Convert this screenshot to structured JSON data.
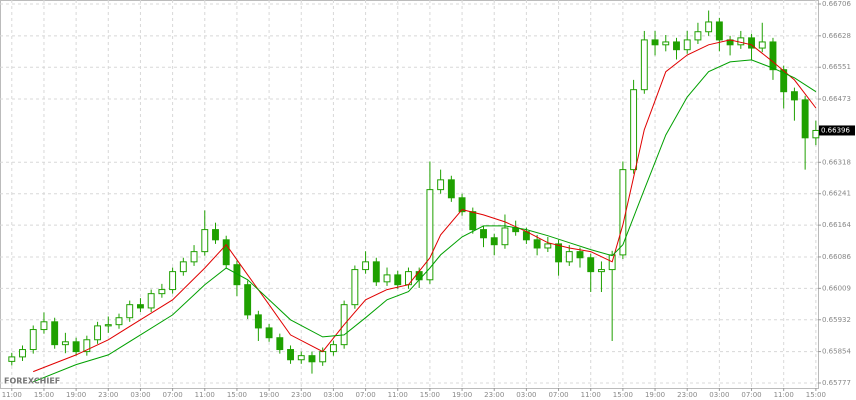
{
  "chart_data": {
    "type": "candlestick",
    "watermark": "FOREXCHIEF",
    "last_price": 0.66396,
    "grid": true,
    "up_color": "#ffffff",
    "down_color": "#1fa000",
    "wick_color": "#1fa000",
    "xlim": [
      -1.1,
      75.2
    ],
    "ylim": [
      0.65777,
      0.66706
    ],
    "yticks": [
      0.66706,
      0.66628,
      0.66551,
      0.66473,
      0.66318,
      0.66241,
      0.66164,
      0.66086,
      0.66009,
      0.65932,
      0.65854,
      0.65777
    ],
    "xticks": [
      {
        "value": 0,
        "label": "11:00"
      },
      {
        "value": 3,
        "label": "15:00"
      },
      {
        "value": 6,
        "label": "19:00"
      },
      {
        "value": 9,
        "label": "23:00"
      },
      {
        "value": 12,
        "label": "03:00"
      },
      {
        "value": 15,
        "label": "07:00"
      },
      {
        "value": 18,
        "label": "11:00"
      },
      {
        "value": 21,
        "label": "15:00"
      },
      {
        "value": 24,
        "label": "19:00"
      },
      {
        "value": 27,
        "label": "23:00"
      },
      {
        "value": 30,
        "label": "03:00"
      },
      {
        "value": 33,
        "label": "07:00"
      },
      {
        "value": 36,
        "label": "11:00"
      },
      {
        "value": 39,
        "label": "15:00"
      },
      {
        "value": 42,
        "label": "19:00"
      },
      {
        "value": 45,
        "label": "23:00"
      },
      {
        "value": 48,
        "label": "03:00"
      },
      {
        "value": 51,
        "label": "07:00"
      },
      {
        "value": 54,
        "label": "11:00"
      },
      {
        "value": 57,
        "label": "15:00"
      },
      {
        "value": 60,
        "label": "19:00"
      },
      {
        "value": 63,
        "label": "23:00"
      },
      {
        "value": 66,
        "label": "03:00"
      },
      {
        "value": 69,
        "label": "07:00"
      },
      {
        "value": 72,
        "label": "11:00"
      },
      {
        "value": 75,
        "label": "15:00"
      }
    ],
    "candles": [
      [
        0.6583,
        0.65851,
        0.6582,
        0.65841
      ],
      [
        0.65841,
        0.65869,
        0.65831,
        0.65859
      ],
      [
        0.65859,
        0.65918,
        0.65849,
        0.65908
      ],
      [
        0.65908,
        0.6595,
        0.65898,
        0.65927
      ],
      [
        0.65927,
        0.65937,
        0.65861,
        0.65871
      ],
      [
        0.65871,
        0.659,
        0.6585,
        0.65878
      ],
      [
        0.65878,
        0.65888,
        0.65844,
        0.65854
      ],
      [
        0.65854,
        0.65893,
        0.65844,
        0.65883
      ],
      [
        0.65883,
        0.65927,
        0.65873,
        0.65917
      ],
      [
        0.65917,
        0.6594,
        0.659,
        0.6592
      ],
      [
        0.6592,
        0.65947,
        0.6591,
        0.65937
      ],
      [
        0.65937,
        0.65979,
        0.65927,
        0.65969
      ],
      [
        0.65969,
        0.65985,
        0.65951,
        0.65961
      ],
      [
        0.65961,
        0.66006,
        0.65951,
        0.65996
      ],
      [
        0.65996,
        0.6602,
        0.65986,
        0.66006
      ],
      [
        0.66006,
        0.6606,
        0.65996,
        0.6605
      ],
      [
        0.6605,
        0.66084,
        0.6604,
        0.66074
      ],
      [
        0.66074,
        0.66115,
        0.66064,
        0.66099
      ],
      [
        0.66099,
        0.662,
        0.66089,
        0.66153
      ],
      [
        0.66153,
        0.6617,
        0.66118,
        0.66128
      ],
      [
        0.66128,
        0.66138,
        0.66057,
        0.66067
      ],
      [
        0.66067,
        0.66077,
        0.6599,
        0.66018
      ],
      [
        0.66018,
        0.66028,
        0.65934,
        0.65944
      ],
      [
        0.65944,
        0.65954,
        0.6588,
        0.65912
      ],
      [
        0.65912,
        0.65922,
        0.65878,
        0.65888
      ],
      [
        0.65888,
        0.65898,
        0.65849,
        0.65859
      ],
      [
        0.65859,
        0.65869,
        0.65824,
        0.65834
      ],
      [
        0.65834,
        0.65854,
        0.65824,
        0.65844
      ],
      [
        0.65844,
        0.65854,
        0.658,
        0.65829
      ],
      [
        0.65829,
        0.65864,
        0.65819,
        0.65854
      ],
      [
        0.65854,
        0.65881,
        0.65844,
        0.65871
      ],
      [
        0.65871,
        0.65979,
        0.65861,
        0.65969
      ],
      [
        0.65969,
        0.66065,
        0.65959,
        0.66055
      ],
      [
        0.66055,
        0.661,
        0.66045,
        0.66074
      ],
      [
        0.66074,
        0.66084,
        0.66015,
        0.66025
      ],
      [
        0.66025,
        0.6606,
        0.66015,
        0.66042
      ],
      [
        0.66042,
        0.66052,
        0.66008,
        0.66018
      ],
      [
        0.66018,
        0.6606,
        0.66008,
        0.6605
      ],
      [
        0.6605,
        0.6606,
        0.6601,
        0.6603
      ],
      [
        0.6603,
        0.6632,
        0.6602,
        0.66251
      ],
      [
        0.66251,
        0.663,
        0.66241,
        0.66275
      ],
      [
        0.66275,
        0.66285,
        0.66221,
        0.66231
      ],
      [
        0.66231,
        0.66241,
        0.66187,
        0.66197
      ],
      [
        0.66197,
        0.66207,
        0.66143,
        0.66153
      ],
      [
        0.66153,
        0.66163,
        0.6611,
        0.66133
      ],
      [
        0.66133,
        0.66143,
        0.6609,
        0.66116
      ],
      [
        0.66116,
        0.6619,
        0.66106,
        0.66157
      ],
      [
        0.66157,
        0.66175,
        0.66138,
        0.66148
      ],
      [
        0.66148,
        0.66158,
        0.66118,
        0.66128
      ],
      [
        0.66128,
        0.6614,
        0.6609,
        0.66108
      ],
      [
        0.66108,
        0.66135,
        0.66098,
        0.66118
      ],
      [
        0.66118,
        0.66128,
        0.6604,
        0.66074
      ],
      [
        0.66074,
        0.66115,
        0.66064,
        0.66099
      ],
      [
        0.66099,
        0.66109,
        0.6606,
        0.66084
      ],
      [
        0.66084,
        0.66094,
        0.66,
        0.6605
      ],
      [
        0.6605,
        0.66075,
        0.66,
        0.66055
      ],
      [
        0.66055,
        0.66101,
        0.6588,
        0.66091
      ],
      [
        0.66091,
        0.6632,
        0.66081,
        0.663
      ],
      [
        0.663,
        0.6652,
        0.6629,
        0.66496
      ],
      [
        0.66496,
        0.6664,
        0.66486,
        0.66618
      ],
      [
        0.66618,
        0.6664,
        0.6658,
        0.66606
      ],
      [
        0.66606,
        0.6663,
        0.6659,
        0.66613
      ],
      [
        0.66613,
        0.66623,
        0.6657,
        0.66594
      ],
      [
        0.66594,
        0.6664,
        0.66584,
        0.66618
      ],
      [
        0.66618,
        0.6666,
        0.66608,
        0.66638
      ],
      [
        0.66638,
        0.6669,
        0.66628,
        0.66662
      ],
      [
        0.66662,
        0.66672,
        0.6659,
        0.66618
      ],
      [
        0.66618,
        0.66628,
        0.6658,
        0.66606
      ],
      [
        0.66606,
        0.6664,
        0.66596,
        0.66623
      ],
      [
        0.66623,
        0.66633,
        0.6657,
        0.66598
      ],
      [
        0.66598,
        0.6666,
        0.66588,
        0.66613
      ],
      [
        0.66613,
        0.66623,
        0.6652,
        0.66545
      ],
      [
        0.66545,
        0.66555,
        0.6645,
        0.66491
      ],
      [
        0.66491,
        0.66501,
        0.6642,
        0.66471
      ],
      [
        0.66471,
        0.66481,
        0.663,
        0.66378
      ],
      [
        0.66378,
        0.6642,
        0.6636,
        0.66396
      ]
    ],
    "ma_x": [
      2,
      6,
      9,
      12,
      15,
      18,
      20,
      22,
      24,
      26,
      29,
      31,
      33,
      35,
      37,
      39,
      40,
      42,
      44,
      46,
      48,
      50,
      52,
      54,
      56,
      57,
      59,
      61,
      63,
      65,
      67,
      69,
      71,
      73,
      75
    ],
    "series": [
      {
        "color": "#e00000",
        "values": [
          0.65805,
          0.65846,
          0.65883,
          0.65932,
          0.65981,
          0.66059,
          0.66116,
          0.66042,
          0.65969,
          0.65895,
          0.65854,
          0.6592,
          0.65981,
          0.66006,
          0.66018,
          0.66084,
          0.6614,
          0.66202,
          0.66189,
          0.66172,
          0.66148,
          0.66121,
          0.66108,
          0.66099,
          0.66074,
          0.66165,
          0.66398,
          0.6654,
          0.66581,
          0.66606,
          0.66618,
          0.66606,
          0.66564,
          0.6652,
          0.66451
        ]
      },
      {
        "color": "#00a000",
        "values": [
          0.6578,
          0.65822,
          0.65846,
          0.65895,
          0.65944,
          0.66018,
          0.66059,
          0.6603,
          0.65981,
          0.65932,
          0.6589,
          0.65895,
          0.65937,
          0.65981,
          0.66001,
          0.66059,
          0.66091,
          0.66135,
          0.66162,
          0.66162,
          0.66153,
          0.66138,
          0.66121,
          0.66104,
          0.66089,
          0.66116,
          0.66251,
          0.66385,
          0.66478,
          0.6654,
          0.66564,
          0.66569,
          0.66549,
          0.66525,
          0.66491
        ]
      }
    ]
  }
}
